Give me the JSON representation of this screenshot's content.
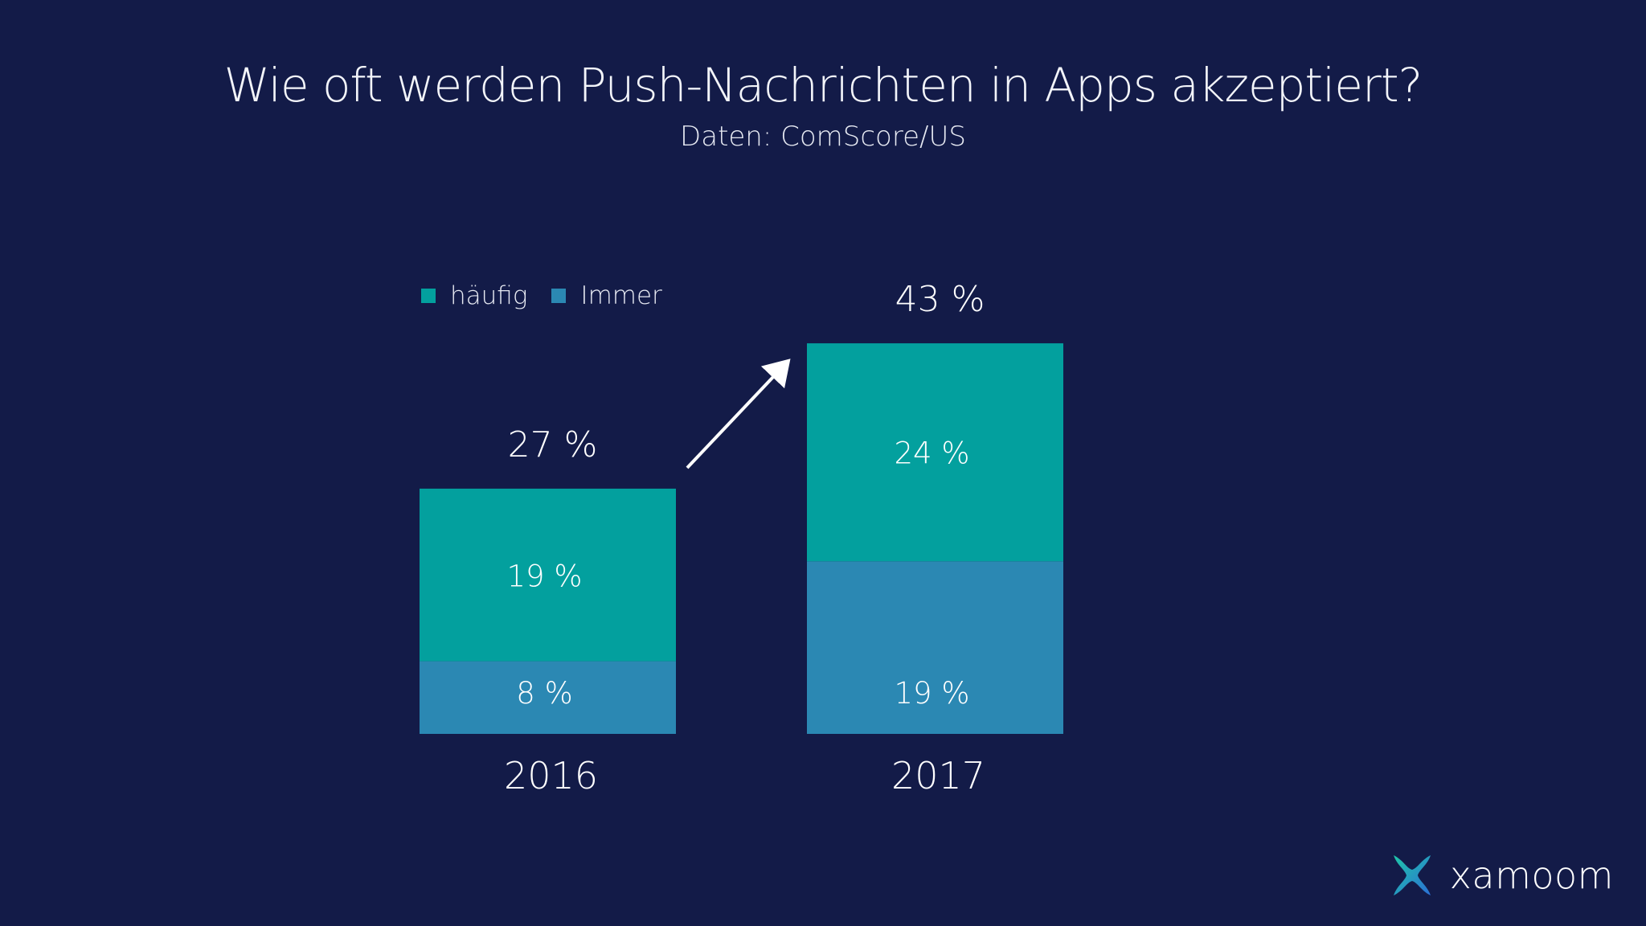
{
  "colors": {
    "background": "#131b48",
    "haeufig": "#03a09e",
    "immer": "#2b88b3",
    "text": "#ffffff"
  },
  "chart_data": {
    "type": "bar",
    "stacked": true,
    "title": "Wie oft werden Push-Nachrichten in Apps akzeptiert?",
    "subtitle": "Daten: ComScore/US",
    "categories": [
      "2016",
      "2017"
    ],
    "series": [
      {
        "name": "Immer",
        "values": [
          8,
          19
        ],
        "value_labels": [
          "8 %",
          "19 %"
        ],
        "color": "#2b88b3"
      },
      {
        "name": "häufig",
        "values": [
          19,
          24
        ],
        "value_labels": [
          "19 %",
          "24 %"
        ],
        "color": "#03a09e"
      }
    ],
    "totals": [
      27,
      43
    ],
    "total_labels": [
      "27 %",
      "43 %"
    ],
    "legend_order": [
      "häufig",
      "Immer"
    ],
    "legend_position": "top-left",
    "grid": false,
    "axes_visible": false,
    "annotation": "upward-arrow"
  },
  "logo": {
    "text": "xamoom",
    "icon": "xamoom-logo-icon"
  }
}
